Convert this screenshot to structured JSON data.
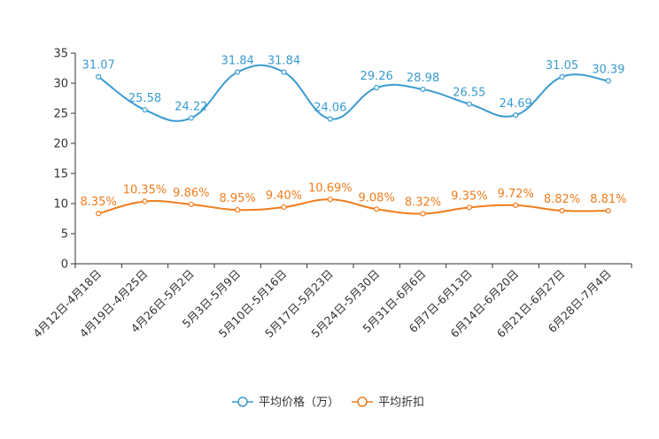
{
  "chart_data": {
    "type": "line",
    "title": "",
    "xlabel": "",
    "ylabel": "",
    "ylim": [
      0,
      35
    ],
    "yticks": [
      0,
      5,
      10,
      15,
      20,
      25,
      30,
      35
    ],
    "categories": [
      "4月12日-4月18日",
      "4月19日-4月25日",
      "4月26日-5月2日",
      "5月3日-5月9日",
      "5月10日-5月16日",
      "5月17日-5月23日",
      "5月24日-5月30日",
      "5月31日-6月6日",
      "6月7日-6月13日",
      "6月14日-6月20日",
      "6月21日-6月27日",
      "6月28日-7月4日"
    ],
    "series": [
      {
        "name": "平均价格（万）",
        "color": "#3a9bd0",
        "values": [
          31.07,
          25.58,
          24.22,
          31.84,
          31.84,
          24.06,
          29.26,
          28.98,
          26.55,
          24.69,
          31.05,
          30.39
        ],
        "labels": [
          "31.07",
          "25.58",
          "24.22",
          "31.84",
          "31.84",
          "24.06",
          "29.26",
          "28.98",
          "26.55",
          "24.69",
          "31.05",
          "30.39"
        ]
      },
      {
        "name": "平均折扣",
        "color": "#f07c1d",
        "values": [
          8.35,
          10.35,
          9.86,
          8.95,
          9.4,
          10.69,
          9.08,
          8.32,
          9.35,
          9.72,
          8.82,
          8.81
        ],
        "labels": [
          "8.35%",
          "10.35%",
          "9.86%",
          "8.95%",
          "9.40%",
          "10.69%",
          "9.08%",
          "8.32%",
          "9.35%",
          "9.72%",
          "8.82%",
          "8.81%"
        ]
      }
    ],
    "grid": false,
    "legend": "bottom-center"
  }
}
